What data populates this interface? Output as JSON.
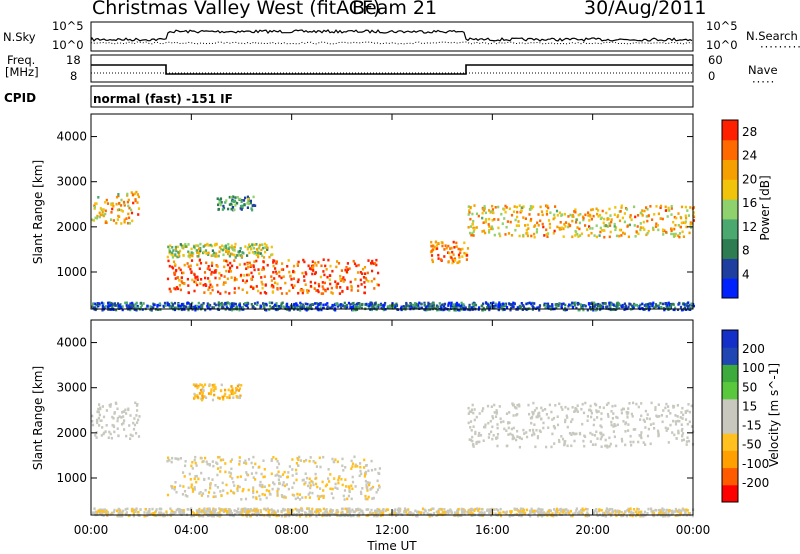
{
  "header": {
    "station": "Christmas Valley West (fitACF)",
    "beam": "Beam 21",
    "date": "30/Aug/2011"
  },
  "top_panels": {
    "nsky_label": "N.Sky",
    "nsky_ticks": [
      "10^5",
      "10^0"
    ],
    "nsearch_label": "N.Search",
    "nsearch_ticks": [
      "10^5",
      "10^0"
    ],
    "freq_label": "Freq.",
    "freq_unit": "[MHz]",
    "freq_ticks": [
      "18",
      "8"
    ],
    "nave_label": "Nave",
    "nave_ticks": [
      "60",
      "0"
    ],
    "cpid_label": "CPID",
    "cpid_text": "normal (fast) -151 IF"
  },
  "colors": {
    "power": [
      "#0022ff",
      "#1f3fa0",
      "#2e7d52",
      "#4ba86e",
      "#8fd16c",
      "#f2c30b",
      "#f6a000",
      "#ff6a00",
      "#ff2000"
    ],
    "velocity": [
      "#ff0000",
      "#ff5a00",
      "#ffa000",
      "#ffc020",
      "#c8c8be",
      "#c8c8be",
      "#5ac83c",
      "#3caa3c",
      "#2046b4",
      "#1430c8"
    ]
  },
  "chart_data": [
    {
      "type": "heatmap",
      "title": "",
      "xlabel": "",
      "ylabel": "Slant Range [km]",
      "xlim": [
        "00:00",
        "24:00"
      ],
      "ylim": [
        180,
        4500
      ],
      "yticks": [
        "1000",
        "2000",
        "3000",
        "4000"
      ],
      "colorbar": {
        "label": "Power [dB]",
        "ticks": [
          "4",
          "8",
          "12",
          "16",
          "20",
          "24",
          "28"
        ],
        "range": [
          0,
          30
        ]
      },
      "regions": [
        {
          "t": [
            0.0,
            1.9
          ],
          "range": [
            2100,
            2800
          ],
          "value": 20
        },
        {
          "t": [
            3.0,
            11.5
          ],
          "range": [
            550,
            1300
          ],
          "value": 26
        },
        {
          "t": [
            3.0,
            7.2
          ],
          "range": [
            1350,
            1650
          ],
          "value": 16
        },
        {
          "t": [
            5.0,
            6.5
          ],
          "range": [
            2400,
            2700
          ],
          "value": 10
        },
        {
          "t": [
            13.5,
            15.0
          ],
          "range": [
            1200,
            1700
          ],
          "value": 24
        },
        {
          "t": [
            15.0,
            24.0
          ],
          "range": [
            1800,
            2500
          ],
          "value": 20
        },
        {
          "t": [
            0.0,
            24.0
          ],
          "range": [
            180,
            350
          ],
          "value": 6
        }
      ]
    },
    {
      "type": "heatmap",
      "title": "",
      "xlabel": "Time UT",
      "ylabel": "Slant Range [km]",
      "xlim": [
        "00:00",
        "24:00"
      ],
      "ylim": [
        180,
        4500
      ],
      "xticks": [
        "00:00",
        "04:00",
        "08:00",
        "12:00",
        "16:00",
        "20:00",
        "00:00"
      ],
      "yticks": [
        "1000",
        "2000",
        "3000",
        "4000"
      ],
      "colorbar": {
        "label": "Velocity [m s^-1]",
        "ticks": [
          "200",
          "100",
          "50",
          "15",
          "-15",
          "-50",
          "-100",
          "-200"
        ],
        "range": [
          -250,
          250
        ]
      },
      "regions": [
        {
          "t": [
            0.0,
            1.9
          ],
          "range": [
            1900,
            2700
          ],
          "value": 0
        },
        {
          "t": [
            3.0,
            11.5
          ],
          "range": [
            550,
            1500
          ],
          "value": -40
        },
        {
          "t": [
            4.0,
            6.0
          ],
          "range": [
            2750,
            3100
          ],
          "value": -80
        },
        {
          "t": [
            15.0,
            24.0
          ],
          "range": [
            1700,
            2700
          ],
          "value": 0
        },
        {
          "t": [
            0.0,
            24.0
          ],
          "range": [
            180,
            350
          ],
          "value": -30
        }
      ]
    }
  ]
}
